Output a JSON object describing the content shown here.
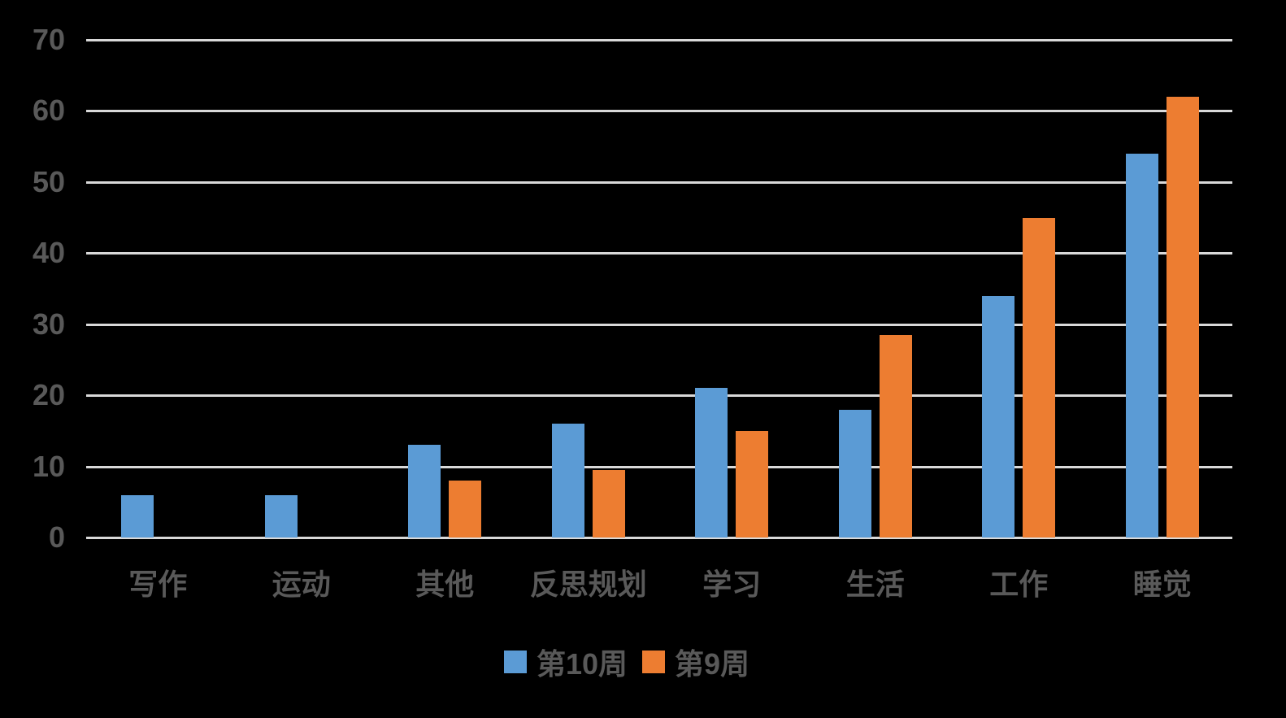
{
  "chart_data": {
    "type": "bar",
    "title": "",
    "xlabel": "",
    "ylabel": "",
    "ylim": [
      0,
      70
    ],
    "yticks": [
      0,
      10,
      20,
      30,
      40,
      50,
      60,
      70
    ],
    "grid": true,
    "legend_position": "bottom",
    "categories": [
      "写作",
      "运动",
      "其他",
      "反思规划",
      "学习",
      "生活",
      "工作",
      "睡觉"
    ],
    "series": [
      {
        "name": "第10周",
        "color": "#5b9bd5",
        "values": [
          6,
          6,
          13,
          16,
          21,
          18,
          34,
          54
        ]
      },
      {
        "name": "第9周",
        "color": "#ed7d31",
        "values": [
          0,
          0,
          8,
          9.5,
          15,
          28.5,
          45,
          62
        ]
      }
    ]
  },
  "legend": {
    "items": [
      {
        "label": "第10周",
        "color": "#5b9bd5"
      },
      {
        "label": "第9周",
        "color": "#ed7d31"
      }
    ]
  }
}
